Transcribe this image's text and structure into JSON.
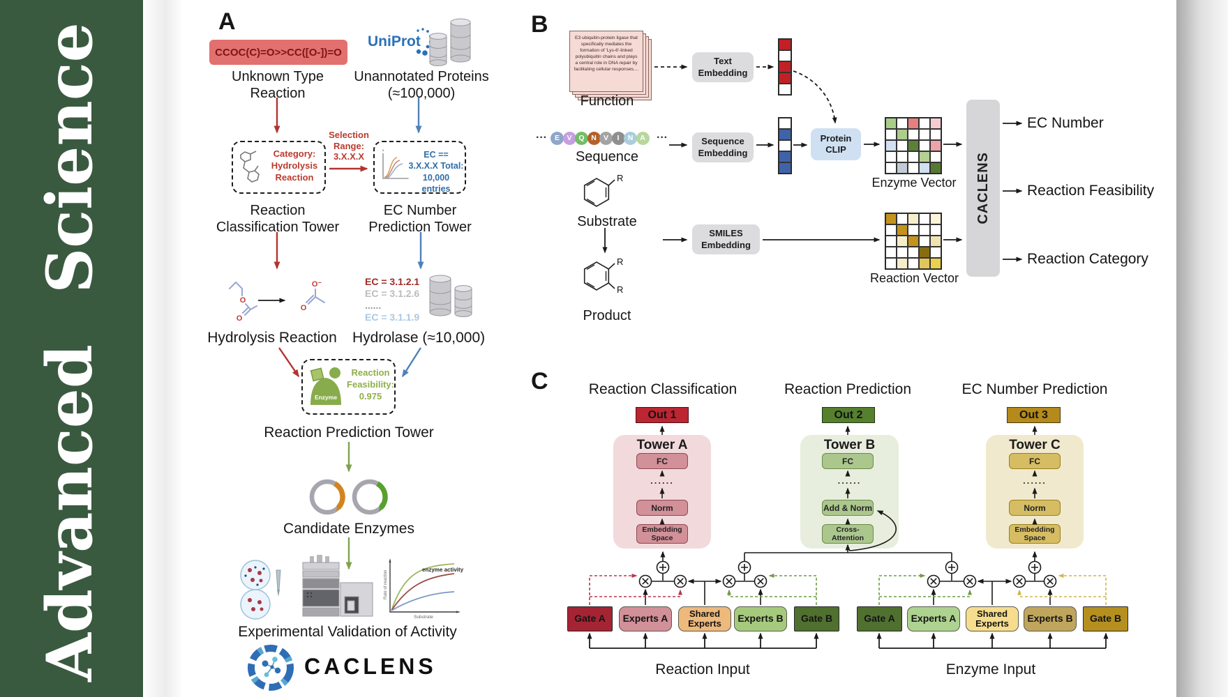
{
  "journal": {
    "name": "Advanced Science",
    "brand_green": "#3a5a40"
  },
  "panel_a": {
    "label": "A",
    "reaction_smiles": "CCOC(C)=O>>CC([O-])=O",
    "unknown_reaction_label": "Unknown Type Reaction",
    "uniprot_logo": "UniProt",
    "unannotated_label": "Unannotated Proteins (≈100,000)",
    "classification_box_text": "Category: Hydrolysis Reaction",
    "selection_text": "Selection Range: 3.X.X.X",
    "ec_box_text": "EC == 3.X.X.X Total: 10,000 entries",
    "classification_tower_label": "Reaction Classification Tower",
    "ec_tower_label": "EC Number Prediction Tower",
    "hydrolysis_label": "Hydrolysis Reaction",
    "ec_list": [
      {
        "text": "EC = 3.1.2.1",
        "color": "#9e2b25"
      },
      {
        "text": "EC = 3.1.2.6",
        "color": "#bcbcbc"
      },
      {
        "text": "......",
        "color": "#9a9a9a"
      },
      {
        "text": "EC = 3.1.1.9",
        "color": "#a9c9e4"
      }
    ],
    "hydrolase_label": "Hydrolase (≈10,000)",
    "enzyme_icon_label": "Enzyme",
    "feasibility_text": "Reaction Feasibility: 0.975",
    "prediction_tower_label": "Reaction Prediction Tower",
    "candidate_label": "Candidate Enzymes",
    "activity_plot": {
      "curve_label": "enzyme activity",
      "ylabel": "Rate of reaction",
      "xlabel": "Substrate"
    },
    "validation_label": "Experimental Validation of Activity",
    "wordmark": "CACLENS"
  },
  "panel_b": {
    "label": "B",
    "function_text": "E3 ubiquitin-protein ligase that specifically mediates the formation of 'Lys-6'-linked polyubiquitin chains and plays a central role in DNA repair by facilitating cellular responses....",
    "function_label": "Function",
    "sequence_ellipsis": "···",
    "sequence_label": "Sequence",
    "sequence_residues": [
      {
        "letter": "E",
        "color": "#8fa6c9"
      },
      {
        "letter": "V",
        "color": "#c59fe0"
      },
      {
        "letter": "Q",
        "color": "#74bc68"
      },
      {
        "letter": "N",
        "color": "#b2622a"
      },
      {
        "letter": "V",
        "color": "#a3a3a3"
      },
      {
        "letter": "I",
        "color": "#8f8f8f"
      },
      {
        "letter": "N",
        "color": "#a9cede"
      },
      {
        "letter": "A",
        "color": "#b7d79b"
      }
    ],
    "substrate_label": "Substrate",
    "product_label": "Product",
    "r_label": "R",
    "text_embedding_label": "Text Embedding",
    "sequence_embedding_label": "Sequence Embedding",
    "smiles_embedding_label": "SMILES Embedding",
    "protein_clip_label": "Protein CLIP",
    "text_vector_cells": [
      "#c32026",
      "#ffffff",
      "#c32026",
      "#c32026",
      "#ffffff"
    ],
    "sequence_vector_cells": [
      "#ffffff",
      "#3f63a9",
      "#ffffff",
      "#3f63a9",
      "#3f63a9"
    ],
    "enzyme_vector_label": "Enzyme Vector",
    "reaction_vector_label": "Reaction Vector",
    "enzyme_matrix": [
      [
        "#a9cd87",
        "#ffffff",
        "#e4807e",
        "#ffffff",
        "#f5cdd1"
      ],
      [
        "#ffffff",
        "#aecd8d",
        "#ffffff",
        "#ffffff",
        "#ffffff"
      ],
      [
        "#d3e0f2",
        "#ffffff",
        "#5d8038",
        "#ffffff",
        "#eda2a8"
      ],
      [
        "#ffffff",
        "#ffffff",
        "#ffffff",
        "#b2d193",
        "#ffffff"
      ],
      [
        "#ffffff",
        "#c2ccd6",
        "#ffffff",
        "#cfe0f0",
        "#57792f"
      ]
    ],
    "reaction_matrix": [
      [
        "#c3931d",
        "#ffffff",
        "#f6eecb",
        "#ffffff",
        "#fbf4da"
      ],
      [
        "#ffffff",
        "#c3931d",
        "#ffffff",
        "#ffffff",
        "#ffffff"
      ],
      [
        "#ffffff",
        "#f6eecb",
        "#c3931d",
        "#ffffff",
        "#f0e3b2"
      ],
      [
        "#ffffff",
        "#ffffff",
        "#ffffff",
        "#8a6c10",
        "#ffffff"
      ],
      [
        "#ffffff",
        "#f6eecb",
        "#ffffff",
        "#e2c65c",
        "#ecd04e"
      ]
    ],
    "caclens_bar_label": "CACLENS",
    "outputs": [
      "EC Number",
      "Reaction Feasibility",
      "Reaction Category"
    ]
  },
  "panel_c": {
    "label": "C",
    "columns": [
      {
        "title": "Reaction Classification",
        "out": "Out 1",
        "tower": "Tower A",
        "layers": [
          "FC",
          "......",
          "Norm",
          "Embedding Space"
        ]
      },
      {
        "title": "Reaction Prediction",
        "out": "Out 2",
        "tower": "Tower B",
        "layers": [
          "FC",
          "......",
          "Add & Norm",
          "Cross-Attention"
        ]
      },
      {
        "title": "EC Number Prediction",
        "out": "Out 3",
        "tower": "Tower C",
        "layers": [
          "FC",
          "......",
          "Norm",
          "Embedding Space"
        ]
      }
    ],
    "moe_left": {
      "boxes": [
        "Gate A",
        "Experts A",
        "Shared Experts",
        "Experts B",
        "Gate B"
      ],
      "label": "Reaction Input"
    },
    "moe_right": {
      "boxes": [
        "Gate A",
        "Experts A",
        "Shared Experts",
        "Experts B",
        "Gate B"
      ],
      "label": "Enzyme Input"
    }
  }
}
